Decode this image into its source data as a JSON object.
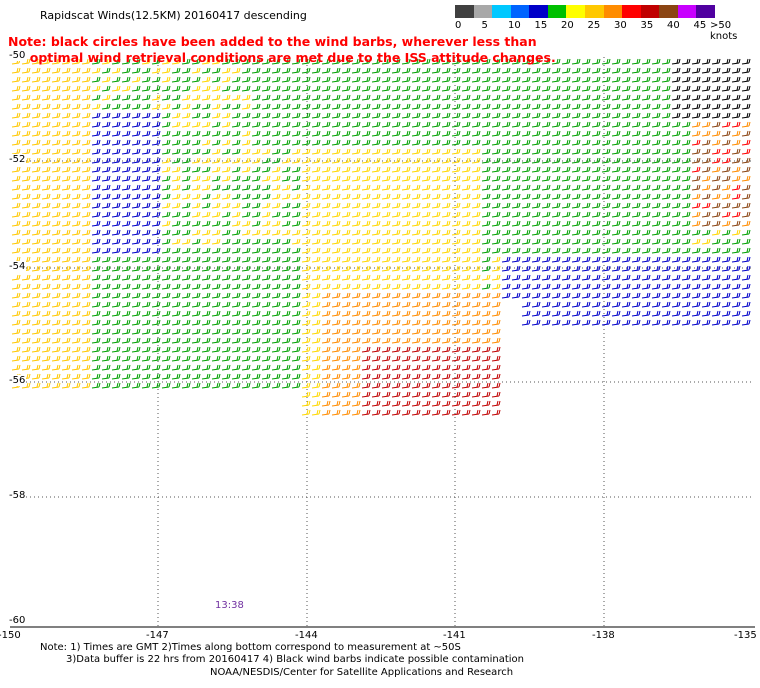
{
  "title": "Rapidscat Winds(12.5KM) 20160417 descending",
  "note_line1": "Note: black circles have been added to the wind barbs, wherever less than",
  "note_line2": "     optimal wind retrieval conditions are met due to the ISS attitude changes.",
  "colorbar": {
    "colors": [
      "#404040",
      "#a8a8a8",
      "#00c8ff",
      "#0064ff",
      "#0000c8",
      "#00c000",
      "#ffff00",
      "#ffc800",
      "#ff8c00",
      "#ff0000",
      "#c00000",
      "#8b4513",
      "#c800ff",
      "#5000a0"
    ],
    "labels": [
      "0",
      "5",
      "10",
      "15",
      "20",
      "25",
      "30",
      "35",
      "40",
      "45",
      ">50 knots"
    ]
  },
  "lat_labels": [
    "-50",
    "-52",
    "-54",
    "-56",
    "-58",
    "-60"
  ],
  "lon_labels": [
    "-150",
    "-147",
    "-144",
    "-141",
    "-138",
    "-135"
  ],
  "time_label": "13:38",
  "footer": {
    "line1": "Note: 1) Times are GMT 2)Times along bottom correspond to measurement at ~50S",
    "line2": "3)Data buffer is 22 hrs from 20160417 4) Black wind barbs indicate possible contamination",
    "line3": "NOAA/NESDIS/Center for Satellite Applications and Research"
  }
}
